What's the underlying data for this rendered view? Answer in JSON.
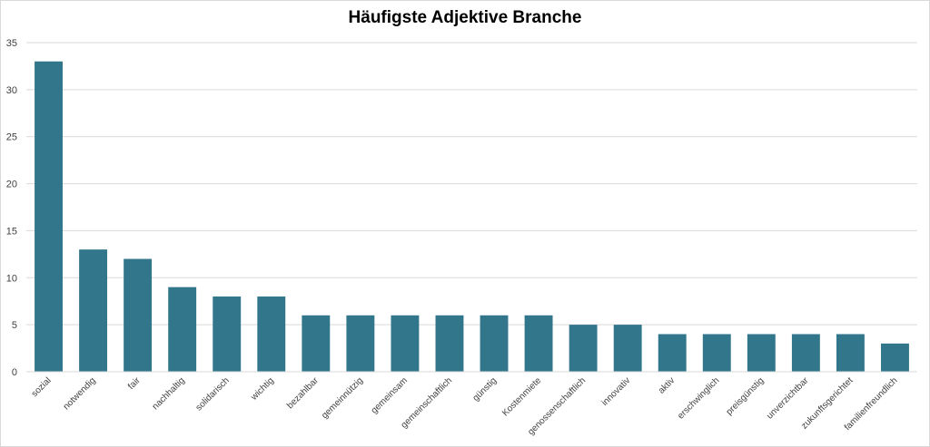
{
  "chart_data": {
    "type": "bar",
    "title": "Häufigste Adjektive Branche",
    "xlabel": "",
    "ylabel": "",
    "ylim": [
      0,
      35
    ],
    "yticks": [
      0,
      5,
      10,
      15,
      20,
      25,
      30,
      35
    ],
    "grid": true,
    "bar_color": "#31768a",
    "categories": [
      "sozial",
      "notwendig",
      "fair",
      "nachhaltig",
      "solidarisch",
      "wichtig",
      "bezahlbar",
      "gemeinnützig",
      "gemeinsam",
      "gemeinschaftlich",
      "günstig",
      "Kostenmiete",
      "genossenschaftlich",
      "innovativ",
      "aktiv",
      "erschwinglich",
      "preisgünstig",
      "unverzichtbar",
      "zukunftsgerichtet",
      "familienfreundlich"
    ],
    "values": [
      33,
      13,
      12,
      9,
      8,
      8,
      6,
      6,
      6,
      6,
      6,
      6,
      5,
      5,
      4,
      4,
      4,
      4,
      4,
      3
    ]
  }
}
